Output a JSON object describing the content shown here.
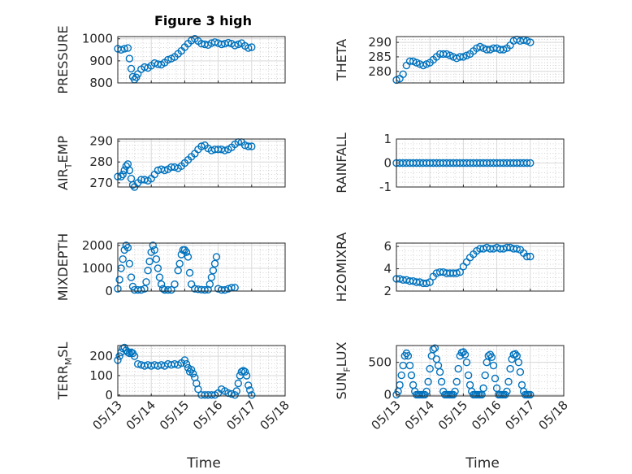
{
  "figure": {
    "title": "Figure 3 high",
    "xlabel": "Time",
    "x_tick_labels": [
      "05/13",
      "05/14",
      "05/15",
      "05/16",
      "05/17",
      "05/18"
    ]
  },
  "colors": {
    "marker": "#0072bd",
    "axes": "#262626",
    "grid": "#d9d9d9",
    "background": "#ffffff"
  },
  "chart_data": [
    {
      "type": "scatter",
      "ylabel": "PRESSURE",
      "ylim": [
        800,
        1010
      ],
      "yticks": [
        800,
        900,
        1000
      ],
      "xlim": [
        0,
        5
      ],
      "grid": true,
      "marker": "circle",
      "x": [
        0,
        0.1,
        0.2,
        0.3,
        0.35,
        0.4,
        0.45,
        0.5,
        0.55,
        0.6,
        0.7,
        0.8,
        0.9,
        1,
        1.1,
        1.2,
        1.3,
        1.4,
        1.5,
        1.6,
        1.7,
        1.8,
        1.9,
        2,
        2.1,
        2.2,
        2.3,
        2.4,
        2.5,
        2.6,
        2.7,
        2.8,
        2.9,
        3,
        3.1,
        3.2,
        3.3,
        3.4,
        3.5,
        3.6,
        3.7,
        3.8,
        3.9,
        4
      ],
      "y": [
        955,
        950,
        955,
        958,
        910,
        865,
        828,
        815,
        825,
        840,
        862,
        872,
        868,
        878,
        890,
        885,
        883,
        892,
        905,
        910,
        918,
        932,
        945,
        962,
        978,
        992,
        1000,
        990,
        978,
        975,
        972,
        980,
        985,
        980,
        975,
        978,
        982,
        978,
        970,
        975,
        980,
        968,
        958,
        962
      ]
    },
    {
      "type": "scatter",
      "ylabel": "THETA",
      "ylim": [
        276,
        292
      ],
      "yticks": [
        280,
        285,
        290
      ],
      "xlim": [
        0,
        5
      ],
      "grid": true,
      "marker": "circle",
      "x": [
        0,
        0.1,
        0.2,
        0.3,
        0.4,
        0.5,
        0.6,
        0.7,
        0.8,
        0.9,
        1,
        1.1,
        1.2,
        1.3,
        1.4,
        1.5,
        1.6,
        1.7,
        1.8,
        1.9,
        2,
        2.1,
        2.2,
        2.3,
        2.4,
        2.5,
        2.6,
        2.7,
        2.8,
        2.9,
        3,
        3.1,
        3.2,
        3.3,
        3.4,
        3.5,
        3.6,
        3.7,
        3.8,
        3.9,
        4
      ],
      "y": [
        277,
        277.5,
        279,
        282,
        283.5,
        283.5,
        283,
        282.5,
        282,
        282.5,
        283,
        284,
        285,
        286,
        286,
        286,
        285.5,
        285,
        284.5,
        285,
        285,
        285.5,
        286,
        287,
        288,
        288.5,
        288,
        287.5,
        287.5,
        288,
        288,
        287.5,
        287.5,
        288,
        289,
        290.5,
        291,
        290.5,
        290.8,
        290.5,
        290
      ]
    },
    {
      "type": "scatter",
      "ylabel": "AIR_TEMP",
      "ylim": [
        268,
        291
      ],
      "yticks": [
        270,
        280,
        290
      ],
      "xlim": [
        0,
        5
      ],
      "grid": true,
      "marker": "circle",
      "x": [
        0,
        0.1,
        0.15,
        0.2,
        0.25,
        0.3,
        0.35,
        0.4,
        0.45,
        0.5,
        0.6,
        0.7,
        0.8,
        0.9,
        1,
        1.1,
        1.2,
        1.3,
        1.4,
        1.5,
        1.6,
        1.7,
        1.8,
        1.9,
        2,
        2.1,
        2.2,
        2.3,
        2.4,
        2.5,
        2.6,
        2.7,
        2.8,
        2.9,
        3,
        3.1,
        3.2,
        3.3,
        3.4,
        3.5,
        3.6,
        3.7,
        3.8,
        3.9,
        4
      ],
      "y": [
        273,
        273,
        274,
        276,
        278,
        279,
        276,
        272,
        269,
        268,
        270,
        271.5,
        271.5,
        271,
        272,
        274,
        276,
        276.5,
        276,
        276.5,
        277.5,
        277.5,
        277,
        278,
        279.5,
        281,
        282.5,
        284,
        286,
        287.5,
        288,
        286.5,
        285.5,
        286,
        286,
        286,
        285.5,
        286,
        287,
        288.5,
        289.5,
        289.5,
        288,
        287.5,
        287.5
      ]
    },
    {
      "type": "scatter",
      "ylabel": "RAINFALL",
      "ylim": [
        -1,
        1
      ],
      "yticks": [
        -1,
        0,
        1
      ],
      "xlim": [
        0,
        5
      ],
      "grid": true,
      "marker": "circle",
      "x": [
        0,
        0.1,
        0.2,
        0.3,
        0.4,
        0.5,
        0.6,
        0.7,
        0.8,
        0.9,
        1,
        1.1,
        1.2,
        1.3,
        1.4,
        1.5,
        1.6,
        1.7,
        1.8,
        1.9,
        2,
        2.1,
        2.2,
        2.3,
        2.4,
        2.5,
        2.6,
        2.7,
        2.8,
        2.9,
        3,
        3.1,
        3.2,
        3.3,
        3.4,
        3.5,
        3.6,
        3.7,
        3.8,
        3.9,
        4
      ],
      "y": [
        0,
        0,
        0,
        0,
        0,
        0,
        0,
        0,
        0,
        0,
        0,
        0,
        0,
        0,
        0,
        0,
        0,
        0,
        0,
        0,
        0,
        0,
        0,
        0,
        0,
        0,
        0,
        0,
        0,
        0,
        0,
        0,
        0,
        0,
        0,
        0,
        0,
        0,
        0,
        0,
        0
      ]
    },
    {
      "type": "scatter",
      "ylabel": "MIXDEPTH",
      "ylim": [
        0,
        2100
      ],
      "yticks": [
        0,
        1000,
        2000
      ],
      "xlim": [
        0,
        5
      ],
      "grid": true,
      "marker": "circle",
      "x": [
        0,
        0.05,
        0.1,
        0.15,
        0.2,
        0.25,
        0.3,
        0.35,
        0.4,
        0.45,
        0.5,
        0.6,
        0.7,
        0.8,
        0.85,
        0.9,
        0.95,
        1,
        1.05,
        1.1,
        1.15,
        1.2,
        1.25,
        1.3,
        1.35,
        1.4,
        1.5,
        1.6,
        1.7,
        1.8,
        1.85,
        1.9,
        1.95,
        2,
        2.05,
        2.1,
        2.15,
        2.2,
        2.3,
        2.4,
        2.5,
        2.6,
        2.7,
        2.75,
        2.8,
        2.85,
        2.9,
        2.95,
        3,
        3.1,
        3.2,
        3.3,
        3.4,
        3.5
      ],
      "y": [
        100,
        500,
        1000,
        1400,
        1800,
        2000,
        1900,
        1200,
        600,
        200,
        50,
        50,
        50,
        100,
        400,
        900,
        1300,
        1700,
        2000,
        1800,
        1400,
        1000,
        600,
        300,
        100,
        50,
        50,
        50,
        300,
        900,
        1200,
        1600,
        1800,
        1800,
        1700,
        1500,
        800,
        300,
        100,
        80,
        60,
        50,
        60,
        300,
        600,
        900,
        1200,
        1500,
        100,
        50,
        50,
        100,
        150,
        150
      ]
    },
    {
      "type": "scatter",
      "ylabel": "H2OMIXRA",
      "ylim": [
        2,
        6.3
      ],
      "yticks": [
        2,
        4,
        6
      ],
      "xlim": [
        0,
        5
      ],
      "grid": true,
      "marker": "circle",
      "x": [
        0,
        0.1,
        0.2,
        0.3,
        0.4,
        0.5,
        0.6,
        0.7,
        0.8,
        0.9,
        1,
        1.1,
        1.2,
        1.3,
        1.4,
        1.5,
        1.6,
        1.7,
        1.8,
        1.9,
        2,
        2.1,
        2.2,
        2.3,
        2.4,
        2.5,
        2.6,
        2.7,
        2.8,
        2.9,
        3,
        3.1,
        3.2,
        3.3,
        3.4,
        3.5,
        3.6,
        3.7,
        3.8,
        3.9,
        4
      ],
      "y": [
        3.1,
        3.1,
        3,
        3,
        2.9,
        2.9,
        2.8,
        2.8,
        2.7,
        2.7,
        2.8,
        3.3,
        3.6,
        3.7,
        3.7,
        3.6,
        3.6,
        3.6,
        3.6,
        3.7,
        4.2,
        4.6,
        5,
        5.3,
        5.6,
        5.8,
        5.8,
        5.9,
        5.8,
        5.8,
        5.9,
        5.8,
        5.8,
        5.9,
        5.9,
        5.8,
        5.8,
        5.7,
        5.4,
        5.1,
        5.1
      ]
    },
    {
      "type": "scatter",
      "ylabel": "TERR_MSL",
      "ylim": [
        -5,
        255
      ],
      "yticks": [
        0,
        100,
        200
      ],
      "xlim": [
        0,
        5
      ],
      "grid": true,
      "marker": "circle",
      "x": [
        0,
        0.05,
        0.1,
        0.15,
        0.2,
        0.25,
        0.3,
        0.35,
        0.4,
        0.45,
        0.5,
        0.6,
        0.7,
        0.8,
        0.9,
        1,
        1.1,
        1.2,
        1.3,
        1.4,
        1.5,
        1.6,
        1.7,
        1.8,
        1.9,
        2,
        2.05,
        2.1,
        2.15,
        2.2,
        2.25,
        2.3,
        2.35,
        2.4,
        2.5,
        2.6,
        2.7,
        2.8,
        2.9,
        3,
        3.1,
        3.2,
        3.3,
        3.4,
        3.5,
        3.55,
        3.6,
        3.65,
        3.7,
        3.75,
        3.8,
        3.85,
        3.9,
        3.95,
        4
      ],
      "y": [
        180,
        200,
        220,
        240,
        245,
        230,
        220,
        215,
        220,
        215,
        200,
        160,
        155,
        150,
        155,
        150,
        155,
        150,
        155,
        150,
        160,
        155,
        160,
        155,
        165,
        180,
        160,
        140,
        120,
        130,
        110,
        90,
        60,
        30,
        0,
        0,
        0,
        0,
        0,
        10,
        30,
        20,
        10,
        5,
        0,
        20,
        60,
        100,
        120,
        125,
        120,
        100,
        50,
        25,
        0
      ]
    },
    {
      "type": "scatter",
      "ylabel": "SUN_FLUX",
      "ylim": [
        -20,
        760
      ],
      "yticks": [
        0,
        500
      ],
      "xlim": [
        0,
        5
      ],
      "grid": true,
      "marker": "circle",
      "x": [
        0,
        0.05,
        0.1,
        0.15,
        0.2,
        0.25,
        0.3,
        0.35,
        0.4,
        0.45,
        0.5,
        0.55,
        0.6,
        0.65,
        0.7,
        0.75,
        0.8,
        0.85,
        0.9,
        0.95,
        1,
        1.05,
        1.1,
        1.15,
        1.2,
        1.25,
        1.3,
        1.35,
        1.4,
        1.45,
        1.5,
        1.55,
        1.6,
        1.65,
        1.7,
        1.75,
        1.8,
        1.85,
        1.9,
        1.95,
        2,
        2.05,
        2.1,
        2.15,
        2.2,
        2.25,
        2.3,
        2.35,
        2.4,
        2.45,
        2.5,
        2.55,
        2.6,
        2.65,
        2.7,
        2.75,
        2.8,
        2.85,
        2.9,
        2.95,
        3,
        3.05,
        3.1,
        3.15,
        3.2,
        3.25,
        3.3,
        3.35,
        3.4,
        3.45,
        3.5,
        3.55,
        3.6,
        3.65,
        3.7,
        3.75,
        3.8,
        3.85,
        3.9,
        3.95,
        4
      ],
      "y": [
        0,
        50,
        150,
        300,
        450,
        600,
        640,
        600,
        450,
        300,
        150,
        50,
        0,
        0,
        0,
        0,
        0,
        0,
        50,
        200,
        400,
        600,
        700,
        720,
        550,
        450,
        350,
        200,
        50,
        0,
        0,
        0,
        0,
        0,
        0,
        50,
        200,
        400,
        600,
        650,
        660,
        620,
        500,
        300,
        150,
        50,
        0,
        0,
        0,
        0,
        0,
        0,
        100,
        300,
        500,
        600,
        620,
        580,
        450,
        250,
        100,
        0,
        0,
        0,
        0,
        0,
        50,
        200,
        400,
        550,
        620,
        630,
        600,
        500,
        350,
        150,
        50,
        0,
        0,
        0,
        0
      ]
    }
  ]
}
